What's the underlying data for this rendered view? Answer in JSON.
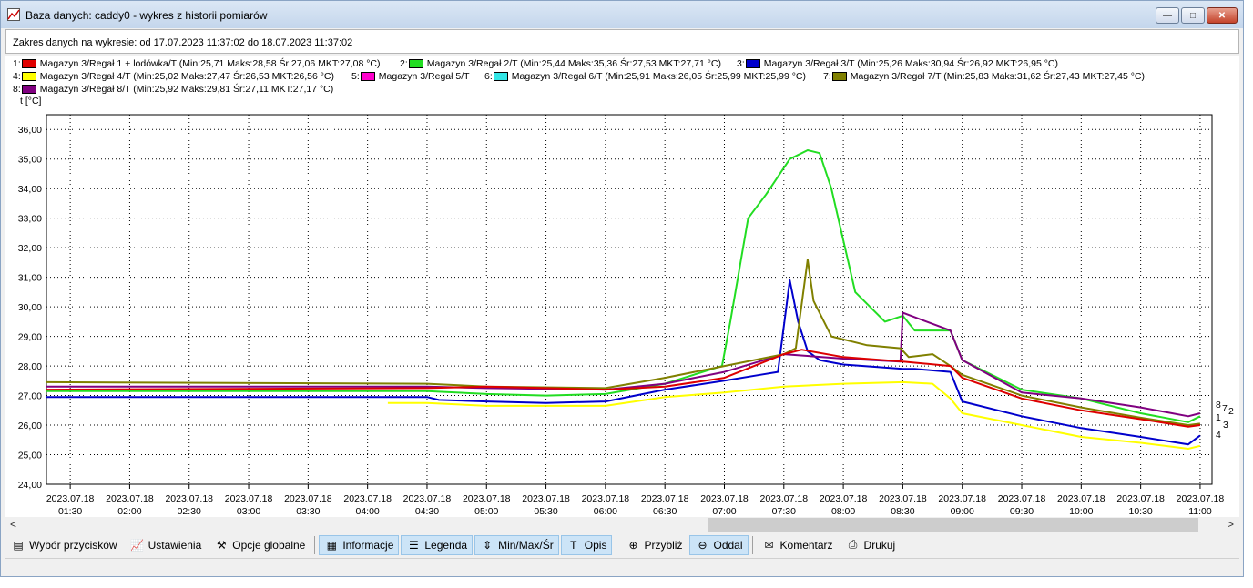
{
  "window": {
    "title": "Baza danych: caddy0 - wykres z historii pomiarów",
    "minimize": "—",
    "maximize": "□",
    "close": "✕"
  },
  "info": {
    "range_text": "Zakres danych na wykresie: od 17.07.2023 11:37:02 do 18.07.2023 11:37:02"
  },
  "legend": [
    {
      "num": "1:",
      "color": "#e00000",
      "text": "Magazyn 3/Regał 1 + lodówka/T (Min:25,71 Maks:28,58 Śr:27,06 MKT:27,08 °C)"
    },
    {
      "num": "2:",
      "color": "#22dd22",
      "text": "Magazyn 3/Regał 2/T (Min:25,44 Maks:35,36 Śr:27,53 MKT:27,71 °C)"
    },
    {
      "num": "3:",
      "color": "#0000cc",
      "text": "Magazyn 3/Regał 3/T (Min:25,26 Maks:30,94 Śr:26,92 MKT:26,95 °C)"
    },
    {
      "num": "4:",
      "color": "#ffff00",
      "text": "Magazyn 3/Regał 4/T (Min:25,02 Maks:27,47 Śr:26,53 MKT:26,56 °C)"
    },
    {
      "num": "5:",
      "color": "#ff00cc",
      "text": "Magazyn 3/Regał 5/T"
    },
    {
      "num": "6:",
      "color": "#33e6e6",
      "text": "Magazyn 3/Regał 6/T (Min:25,91 Maks:26,05 Śr:25,99 MKT:25,99 °C)"
    },
    {
      "num": "7:",
      "color": "#808000",
      "text": "Magazyn 3/Regał 7/T (Min:25,83 Maks:31,62 Śr:27,43 MKT:27,45 °C)"
    },
    {
      "num": "8:",
      "color": "#800080",
      "text": "Magazyn 3/Regał 8/T (Min:25,92 Maks:29,81 Śr:27,11 MKT:27,17 °C)"
    }
  ],
  "scrollbar": {
    "left": "<",
    "right": ">"
  },
  "toolbar": [
    {
      "icon": "▤",
      "icon_name": "sensor-list-icon",
      "label": "Wybór przycisków",
      "active": false
    },
    {
      "icon": "📈",
      "icon_name": "settings-chart-icon",
      "label": "Ustawienia",
      "active": false
    },
    {
      "icon": "⚒",
      "icon_name": "tools-icon",
      "label": "Opcje globalne",
      "active": false
    },
    {
      "icon": "▦",
      "icon_name": "info-icon",
      "label": "Informacje",
      "active": true
    },
    {
      "icon": "☰",
      "icon_name": "legend-icon",
      "label": "Legenda",
      "active": true
    },
    {
      "icon": "⇕",
      "icon_name": "minmax-icon",
      "label": "Min/Max/Śr",
      "active": true
    },
    {
      "icon": "T",
      "icon_name": "description-icon",
      "label": "Opis",
      "active": true
    },
    {
      "icon": "⊕",
      "icon_name": "zoom-in-icon",
      "label": "Przybliż",
      "active": false
    },
    {
      "icon": "⊖",
      "icon_name": "zoom-out-icon",
      "label": "Oddal",
      "active": true
    },
    {
      "icon": "✉",
      "icon_name": "comment-icon",
      "label": "Komentarz",
      "active": false
    },
    {
      "icon": "⎙",
      "icon_name": "print-icon",
      "label": "Drukuj",
      "active": false
    }
  ],
  "chart_data": {
    "type": "line",
    "ylabel": "t [°C]",
    "ylim": [
      24,
      36.5
    ],
    "yticks": [
      "24,00",
      "25,00",
      "26,00",
      "27,00",
      "28,00",
      "29,00",
      "30,00",
      "31,00",
      "32,00",
      "33,00",
      "34,00",
      "35,00",
      "36,00"
    ],
    "xlim": [
      1.3,
      11.1
    ],
    "xticks": [
      {
        "x": 1.5,
        "date": "2023.07.18",
        "time": "01:30"
      },
      {
        "x": 2.0,
        "date": "2023.07.18",
        "time": "02:00"
      },
      {
        "x": 2.5,
        "date": "2023.07.18",
        "time": "02:30"
      },
      {
        "x": 3.0,
        "date": "2023.07.18",
        "time": "03:00"
      },
      {
        "x": 3.5,
        "date": "2023.07.18",
        "time": "03:30"
      },
      {
        "x": 4.0,
        "date": "2023.07.18",
        "time": "04:00"
      },
      {
        "x": 4.5,
        "date": "2023.07.18",
        "time": "04:30"
      },
      {
        "x": 5.0,
        "date": "2023.07.18",
        "time": "05:00"
      },
      {
        "x": 5.5,
        "date": "2023.07.18",
        "time": "05:30"
      },
      {
        "x": 6.0,
        "date": "2023.07.18",
        "time": "06:00"
      },
      {
        "x": 6.5,
        "date": "2023.07.18",
        "time": "06:30"
      },
      {
        "x": 7.0,
        "date": "2023.07.18",
        "time": "07:00"
      },
      {
        "x": 7.5,
        "date": "2023.07.18",
        "time": "07:30"
      },
      {
        "x": 8.0,
        "date": "2023.07.18",
        "time": "08:00"
      },
      {
        "x": 8.5,
        "date": "2023.07.18",
        "time": "08:30"
      },
      {
        "x": 9.0,
        "date": "2023.07.18",
        "time": "09:00"
      },
      {
        "x": 9.5,
        "date": "2023.07.18",
        "time": "09:30"
      },
      {
        "x": 10.0,
        "date": "2023.07.18",
        "time": "10:00"
      },
      {
        "x": 10.5,
        "date": "2023.07.18",
        "time": "10:30"
      },
      {
        "x": 11.0,
        "date": "2023.07.18",
        "time": "11:00"
      }
    ],
    "grid": true,
    "series": [
      {
        "name": "Magazyn 3/Regał 4/T",
        "end_label": "4",
        "color": "#ffff00",
        "x": [
          4.17,
          4.5,
          5.0,
          5.5,
          6.0,
          6.5,
          7.0,
          7.5,
          8.0,
          8.5,
          8.75,
          8.9,
          9.0,
          9.5,
          10.0,
          10.5,
          10.9,
          11.0
        ],
        "y": [
          26.75,
          26.75,
          26.65,
          26.65,
          26.65,
          26.95,
          27.1,
          27.3,
          27.4,
          27.45,
          27.4,
          26.9,
          26.4,
          26.0,
          25.6,
          25.4,
          25.2,
          25.3
        ]
      },
      {
        "name": "Magazyn 3/Regał 3/T",
        "end_label": "3",
        "color": "#0000cc",
        "x": [
          1.3,
          4.5,
          4.6,
          5.0,
          5.5,
          6.0,
          6.5,
          7.0,
          7.3,
          7.45,
          7.55,
          7.62,
          7.7,
          7.8,
          8.0,
          8.5,
          8.6,
          8.9,
          9.0,
          9.5,
          10.0,
          10.5,
          10.9,
          11.0
        ],
        "y": [
          26.95,
          26.95,
          26.85,
          26.8,
          26.75,
          26.8,
          27.2,
          27.5,
          27.7,
          27.8,
          30.9,
          29.5,
          28.5,
          28.2,
          28.05,
          27.9,
          27.9,
          27.8,
          26.8,
          26.3,
          25.9,
          25.6,
          25.35,
          25.65
        ]
      },
      {
        "name": "Magazyn 3/Regał 2/T",
        "end_label": "2",
        "color": "#22dd22",
        "x": [
          1.3,
          4.5,
          5.0,
          5.5,
          6.0,
          6.5,
          6.98,
          7.05,
          7.2,
          7.35,
          7.55,
          7.7,
          7.8,
          7.9,
          8.1,
          8.35,
          8.5,
          8.6,
          8.9,
          9.0,
          9.5,
          10.0,
          10.5,
          10.9,
          11.0
        ],
        "y": [
          27.15,
          27.15,
          27.05,
          27.0,
          27.05,
          27.4,
          28.0,
          29.5,
          33.0,
          33.8,
          35.0,
          35.3,
          35.2,
          34.0,
          30.5,
          29.5,
          29.7,
          29.2,
          29.2,
          28.2,
          27.2,
          26.9,
          26.4,
          26.1,
          26.3
        ]
      },
      {
        "name": "Magazyn 3/Regał 8/T",
        "end_label": "8",
        "color": "#800080",
        "x": [
          1.3,
          4.5,
          5.0,
          6.0,
          6.5,
          7.0,
          7.5,
          8.0,
          8.48,
          8.5,
          8.9,
          9.0,
          9.5,
          10.0,
          10.5,
          10.9,
          11.0
        ],
        "y": [
          27.3,
          27.3,
          27.25,
          27.2,
          27.4,
          27.8,
          28.4,
          28.25,
          28.15,
          29.8,
          29.2,
          28.2,
          27.1,
          26.9,
          26.6,
          26.3,
          26.4
        ]
      },
      {
        "name": "Magazyn 3/Regał 7/T",
        "end_label": "7",
        "color": "#808000",
        "x": [
          1.3,
          4.5,
          5.0,
          6.0,
          6.5,
          7.0,
          7.5,
          7.6,
          7.7,
          7.75,
          7.9,
          8.2,
          8.48,
          8.55,
          8.75,
          8.9,
          9.0,
          9.5,
          10.0,
          10.5,
          10.9,
          11.0
        ],
        "y": [
          27.45,
          27.4,
          27.3,
          27.25,
          27.6,
          28.0,
          28.4,
          28.6,
          31.6,
          30.2,
          29.0,
          28.7,
          28.6,
          28.3,
          28.4,
          28.0,
          27.7,
          27.0,
          26.6,
          26.25,
          26.0,
          26.05
        ]
      },
      {
        "name": "Magazyn 3/Regał 1 + lodówka/T",
        "end_label": "1",
        "color": "#dd0000",
        "x": [
          1.3,
          4.5,
          5.0,
          5.5,
          6.0,
          6.5,
          7.0,
          7.5,
          7.65,
          8.0,
          8.5,
          8.9,
          9.0,
          9.5,
          10.0,
          10.5,
          10.9,
          11.0
        ],
        "y": [
          27.2,
          27.25,
          27.3,
          27.25,
          27.2,
          27.3,
          27.6,
          28.4,
          28.55,
          28.3,
          28.15,
          28.0,
          27.6,
          26.9,
          26.5,
          26.2,
          25.95,
          26.0
        ]
      }
    ]
  }
}
